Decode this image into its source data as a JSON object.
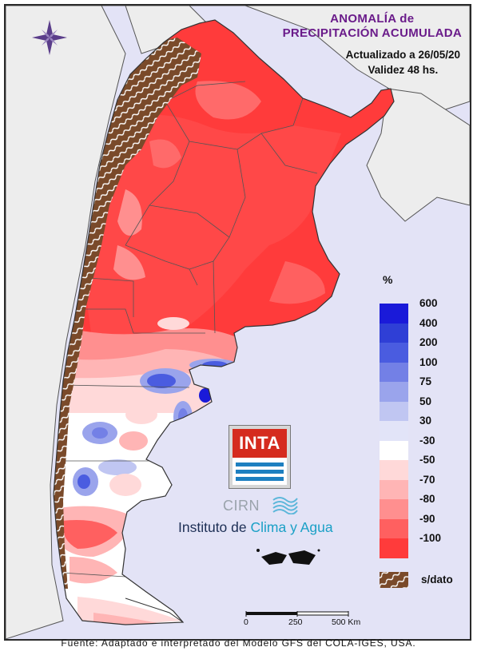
{
  "title": {
    "line1": "ANOMALÍA de",
    "line2": "PRECIPITACIÓN ACUMULADA"
  },
  "subtitle": {
    "updated": "Actualizado a 26/05/20",
    "validity": "Validez 48 hs."
  },
  "legend": {
    "unit": "%",
    "classes": [
      {
        "label": "600",
        "color": "#1a1ad9"
      },
      {
        "label": "400",
        "color": "#2f3fd6"
      },
      {
        "label": "200",
        "color": "#4a5ce0"
      },
      {
        "label": "100",
        "color": "#7380e6"
      },
      {
        "label": "75",
        "color": "#9aa4ec"
      },
      {
        "label": "50",
        "color": "#c0c6f2"
      },
      {
        "label": "30",
        "color": "#e2e4f8"
      },
      {
        "label": "-30",
        "color": "#ffffff"
      },
      {
        "label": "-50",
        "color": "#ffd9d9"
      },
      {
        "label": "-70",
        "color": "#ffb5b5"
      },
      {
        "label": "-80",
        "color": "#ff8f8f"
      },
      {
        "label": "-90",
        "color": "#ff6060"
      },
      {
        "label": "-100",
        "color": "#ff3b3b"
      }
    ],
    "nodata_label": "s/dato",
    "nodata_color": "#7a4a2a"
  },
  "logos": {
    "inta": "INTA",
    "cirn": "CIRN",
    "institute_prefix": "Instituto de ",
    "institute_highlight": "Clima y Agua"
  },
  "scale_bar": {
    "labels": [
      "0",
      "250",
      "500 Km"
    ]
  },
  "source": "Fuente: Adaptado e interpretado del Modelo GFS del COLA-IGES, USA.",
  "icons": {
    "compass": "compass-rose-icon"
  }
}
